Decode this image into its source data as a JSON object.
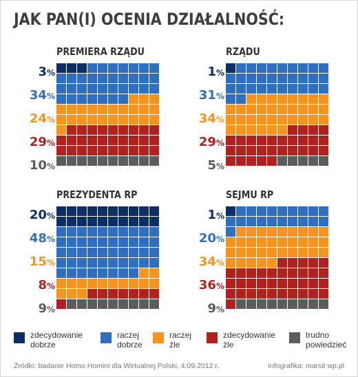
{
  "header": {
    "title": "JAK PAN(I) OCENIA DZIAŁALNOŚĆ:"
  },
  "colors": {
    "zdecydowanie_dobrze": "#0d2f66",
    "raczej_dobrze": "#2f6fc2",
    "raczej_zle": "#f7941d",
    "zdecydowanie_zle": "#b3211f",
    "trudno_powiedziec": "#5c5c5c"
  },
  "chart_data": [
    {
      "type": "waffle",
      "title": "PREMIERA RZĄDU",
      "categories": [
        "zdecydowanie dobrze",
        "raczej dobrze",
        "raczej źle",
        "zdecydowanie źle",
        "trudno powiedzieć"
      ],
      "values": [
        3,
        34,
        24,
        29,
        10
      ],
      "labels": [
        "3",
        "34",
        "24",
        "29",
        "10"
      ],
      "unit": "%"
    },
    {
      "type": "waffle",
      "title": "RZĄDU",
      "categories": [
        "zdecydowanie dobrze",
        "raczej dobrze",
        "raczej źle",
        "zdecydowanie źle",
        "trudno powiedzieć"
      ],
      "values": [
        1,
        31,
        34,
        29,
        5
      ],
      "labels": [
        "1",
        "31",
        "34",
        "29",
        "5"
      ],
      "unit": "%"
    },
    {
      "type": "waffle",
      "title": "PREZYDENTA RP",
      "categories": [
        "zdecydowanie dobrze",
        "raczej dobrze",
        "raczej źle",
        "zdecydowanie źle",
        "trudno powiedzieć"
      ],
      "values": [
        20,
        48,
        15,
        8,
        9
      ],
      "labels": [
        "20",
        "48",
        "15",
        "8",
        "9"
      ],
      "unit": "%"
    },
    {
      "type": "waffle",
      "title": "SEJMU RP",
      "categories": [
        "zdecydowanie dobrze",
        "raczej dobrze",
        "raczej źle",
        "zdecydowanie źle",
        "trudno powiedzieć"
      ],
      "values": [
        1,
        20,
        34,
        36,
        9
      ],
      "labels": [
        "1",
        "20",
        "34",
        "36",
        "9"
      ],
      "unit": "%"
    }
  ],
  "legend": [
    {
      "label": "zdecydowanie\ndobrze",
      "color": "#0d2f66"
    },
    {
      "label": "raczej\ndobrze",
      "color": "#2f6fc2"
    },
    {
      "label": "raczej\nźle",
      "color": "#f7941d"
    },
    {
      "label": "zdecydowanie\nźle",
      "color": "#b3211f"
    },
    {
      "label": "trudno\npowiedzieć",
      "color": "#5c5c5c"
    }
  ],
  "footer": {
    "source": "Źródło: badanie Homo Homini dla Wirtualnej Polski, 4.09.2012 r.",
    "credit": "Infografika: marsit wp.pl"
  }
}
